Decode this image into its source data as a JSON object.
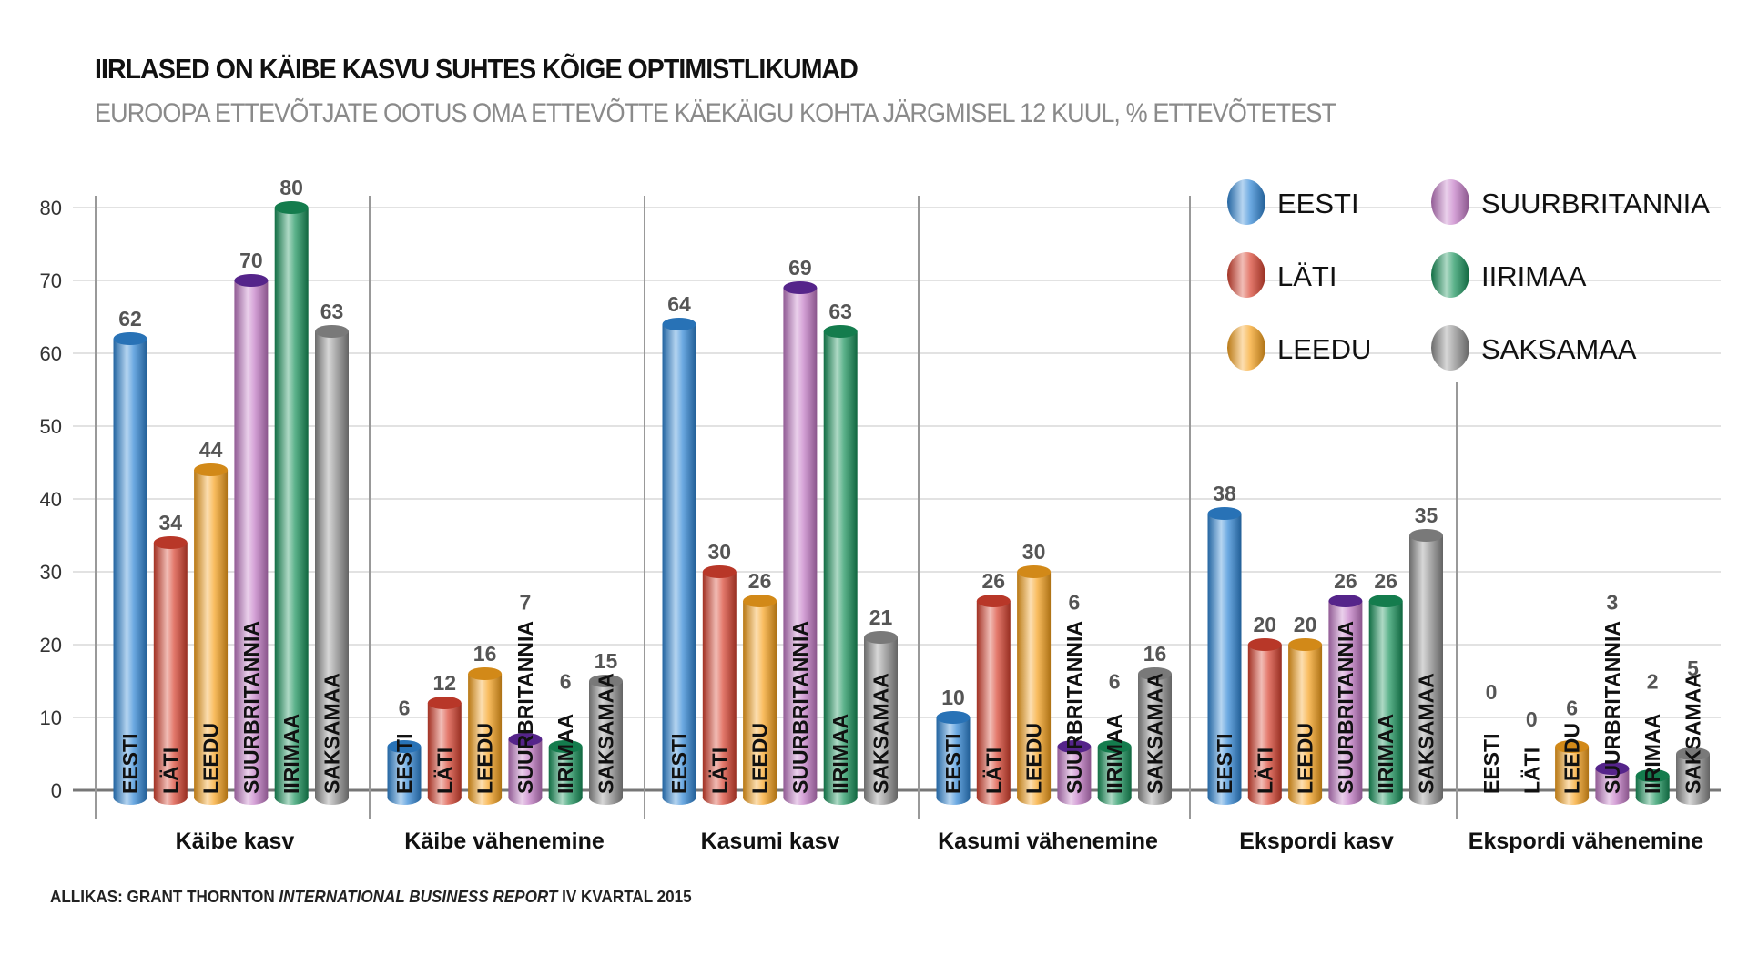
{
  "chart_data": {
    "type": "bar",
    "title": "IIRLASED ON KÄIBE KASVU SUHTES KÕIGE OPTIMISTLIKUMAD",
    "subtitle": "EUROOPA ETTEVÕTJATE OOTUS OMA ETTEVÕTTE KÄEKÄIGU KOHTA JÄRGMISEL 12 KUUL, % ETTEVÕTETEST",
    "source_prefix": "ALLIKAS: GRANT THORNTON ",
    "source_italic": "INTERNATIONAL BUSINESS REPORT",
    "source_suffix": " IV KVARTAL 2015",
    "categories": [
      "Käibe kasv",
      "Käibe vähenemine",
      "Kasumi kasv",
      "Kasumi vähenemine",
      "Ekspordi kasv",
      "Ekspordi vähenemine"
    ],
    "series": [
      {
        "name": "EESTI",
        "color": "#2f86d6",
        "values": [
          62,
          6,
          64,
          10,
          38,
          0
        ]
      },
      {
        "name": "LÄTI",
        "color": "#d8412f",
        "values": [
          34,
          12,
          30,
          26,
          20,
          0
        ]
      },
      {
        "name": "LEEDU",
        "color": "#f7a11c",
        "values": [
          44,
          16,
          26,
          30,
          20,
          6
        ]
      },
      {
        "name": "SUURBRITANNIA",
        "color": "#c37ac6",
        "values": [
          70,
          7,
          69,
          6,
          26,
          3
        ]
      },
      {
        "name": "IIRIMAA",
        "color": "#17925a",
        "values": [
          80,
          6,
          63,
          6,
          26,
          2
        ]
      },
      {
        "name": "SAKSAMAA",
        "color": "#8e8e8e",
        "values": [
          63,
          15,
          21,
          16,
          35,
          5
        ]
      }
    ],
    "ylim": [
      0,
      80
    ],
    "yticks": [
      0,
      10,
      20,
      30,
      40,
      50,
      60,
      70,
      80
    ],
    "grid": true,
    "legend": "top-right"
  }
}
